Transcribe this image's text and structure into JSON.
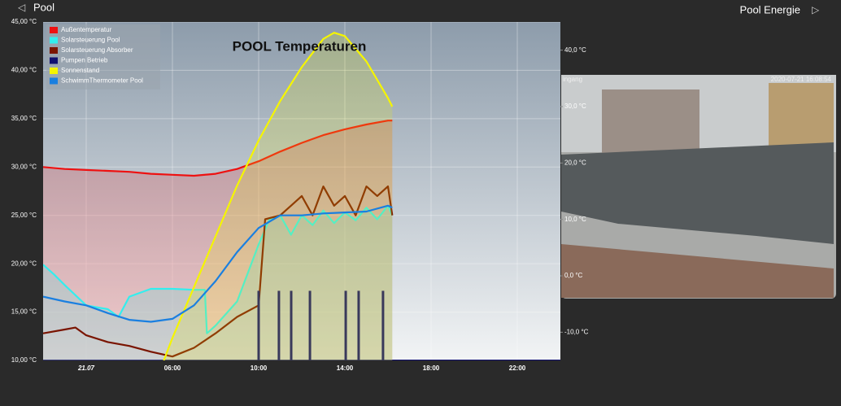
{
  "header": {
    "title": "Pool",
    "link": "Pool Energie"
  },
  "camera": {
    "timestamp": "2020-07-21 16:08:54",
    "label": "ingang"
  },
  "chart_data": {
    "type": "line",
    "title": "POOL Temperaturen",
    "grid": true,
    "legend": "top-left",
    "xlim": [
      0,
      24
    ],
    "xticks": [
      {
        "value": 2,
        "label": "21.07"
      },
      {
        "value": 6,
        "label": "06:00"
      },
      {
        "value": 10,
        "label": "10:00"
      },
      {
        "value": 14,
        "label": "14:00"
      },
      {
        "value": 18,
        "label": "18:00"
      },
      {
        "value": 22,
        "label": "22:00"
      }
    ],
    "ylim": [
      10,
      45
    ],
    "yticks": [
      {
        "value": 10,
        "label": "10,00 °C"
      },
      {
        "value": 15,
        "label": "15,00 °C"
      },
      {
        "value": 20,
        "label": "20,00 °C"
      },
      {
        "value": 25,
        "label": "25,00 °C"
      },
      {
        "value": 30,
        "label": "30,00 °C"
      },
      {
        "value": 35,
        "label": "35,00 °C"
      },
      {
        "value": 40,
        "label": "40,00 °C"
      },
      {
        "value": 45,
        "label": "45,00 °C"
      }
    ],
    "y2lim": [
      -15,
      45
    ],
    "y2ticks": [
      {
        "value": -10,
        "label": "-10,0 °C"
      },
      {
        "value": 0,
        "label": "0,0 °C"
      },
      {
        "value": 10,
        "label": "10,0 °C"
      },
      {
        "value": 20,
        "label": "20,0 °C"
      },
      {
        "value": 30,
        "label": "30,0 °C"
      },
      {
        "value": 40,
        "label": "40,0 °C"
      }
    ],
    "series": [
      {
        "name": "Außentemperatur",
        "color": "#ee1111",
        "area": true,
        "x": [
          0,
          1,
          2,
          3,
          4,
          5,
          6,
          7,
          8,
          9,
          10,
          11,
          12,
          13,
          14,
          15,
          16,
          16.2
        ],
        "values": [
          30.0,
          29.8,
          29.7,
          29.6,
          29.5,
          29.3,
          29.2,
          29.1,
          29.3,
          29.8,
          30.6,
          31.6,
          32.5,
          33.3,
          33.9,
          34.4,
          34.8,
          34.8
        ]
      },
      {
        "name": "Solarsteuerung Pool",
        "color": "#33eeee",
        "area": true,
        "x": [
          0,
          0.5,
          1,
          2,
          3,
          3.5,
          4,
          5,
          6,
          7,
          7.5,
          7.6,
          8,
          9,
          10,
          10.5,
          11,
          11.5,
          12,
          12.5,
          13,
          13.5,
          14,
          14.5,
          15,
          15.5,
          16,
          16.2
        ],
        "values": [
          19.9,
          18.9,
          17.8,
          15.7,
          15.3,
          14.5,
          16.6,
          17.4,
          17.4,
          17.3,
          17.3,
          12.8,
          13.6,
          16.1,
          22.0,
          24.6,
          25.0,
          23.0,
          25.0,
          24.0,
          25.5,
          24.2,
          25.3,
          24.5,
          25.8,
          24.6,
          26.0,
          25.0
        ]
      },
      {
        "name": "Solarsteuerung Absorber",
        "color": "#7a1400",
        "x": [
          0,
          1,
          1.5,
          2,
          3,
          4,
          5,
          6,
          7,
          8,
          9,
          10,
          10.3,
          11,
          11.5,
          12,
          12.5,
          13,
          13.5,
          14,
          14.5,
          15,
          15.5,
          16,
          16.2
        ],
        "values": [
          12.8,
          13.2,
          13.4,
          12.6,
          11.9,
          11.5,
          10.9,
          10.4,
          11.3,
          12.8,
          14.5,
          15.7,
          24.6,
          25.0,
          26.0,
          27.0,
          25.0,
          28.0,
          26.0,
          27.0,
          25.0,
          28.0,
          27.0,
          28.0,
          25.0
        ]
      },
      {
        "name": "Pumpen Betrieb",
        "color": "#101070",
        "kind": "spikes",
        "x": [
          10.0,
          10.94,
          11.51,
          12.38,
          14.04,
          14.64,
          15.77
        ],
        "values": [
          17.2,
          17.2,
          17.2,
          17.2,
          17.2,
          17.2,
          17.2
        ]
      },
      {
        "name": "Sonnenstand",
        "color": "#f5f500",
        "axis": "y2",
        "area": true,
        "x": [
          5.6,
          6,
          7,
          8,
          9,
          10,
          11,
          12,
          13,
          13.5,
          14,
          15,
          16,
          16.2
        ],
        "values": [
          -15,
          -11,
          -2,
          7,
          16,
          24,
          31,
          37,
          42,
          43.1,
          42.5,
          38,
          31.5,
          30
        ]
      },
      {
        "name": "SchwimmThermometer Pool",
        "color": "#1a7fe0",
        "x": [
          0,
          1,
          2,
          3,
          4,
          5,
          6,
          7,
          8,
          9,
          10,
          11,
          12,
          13,
          14,
          15,
          16,
          16.2
        ],
        "values": [
          16.6,
          16.1,
          15.7,
          14.9,
          14.2,
          14.0,
          14.3,
          15.7,
          18.2,
          21.2,
          23.7,
          25.0,
          25.0,
          25.2,
          25.3,
          25.4,
          26.0,
          25.8
        ]
      }
    ]
  }
}
